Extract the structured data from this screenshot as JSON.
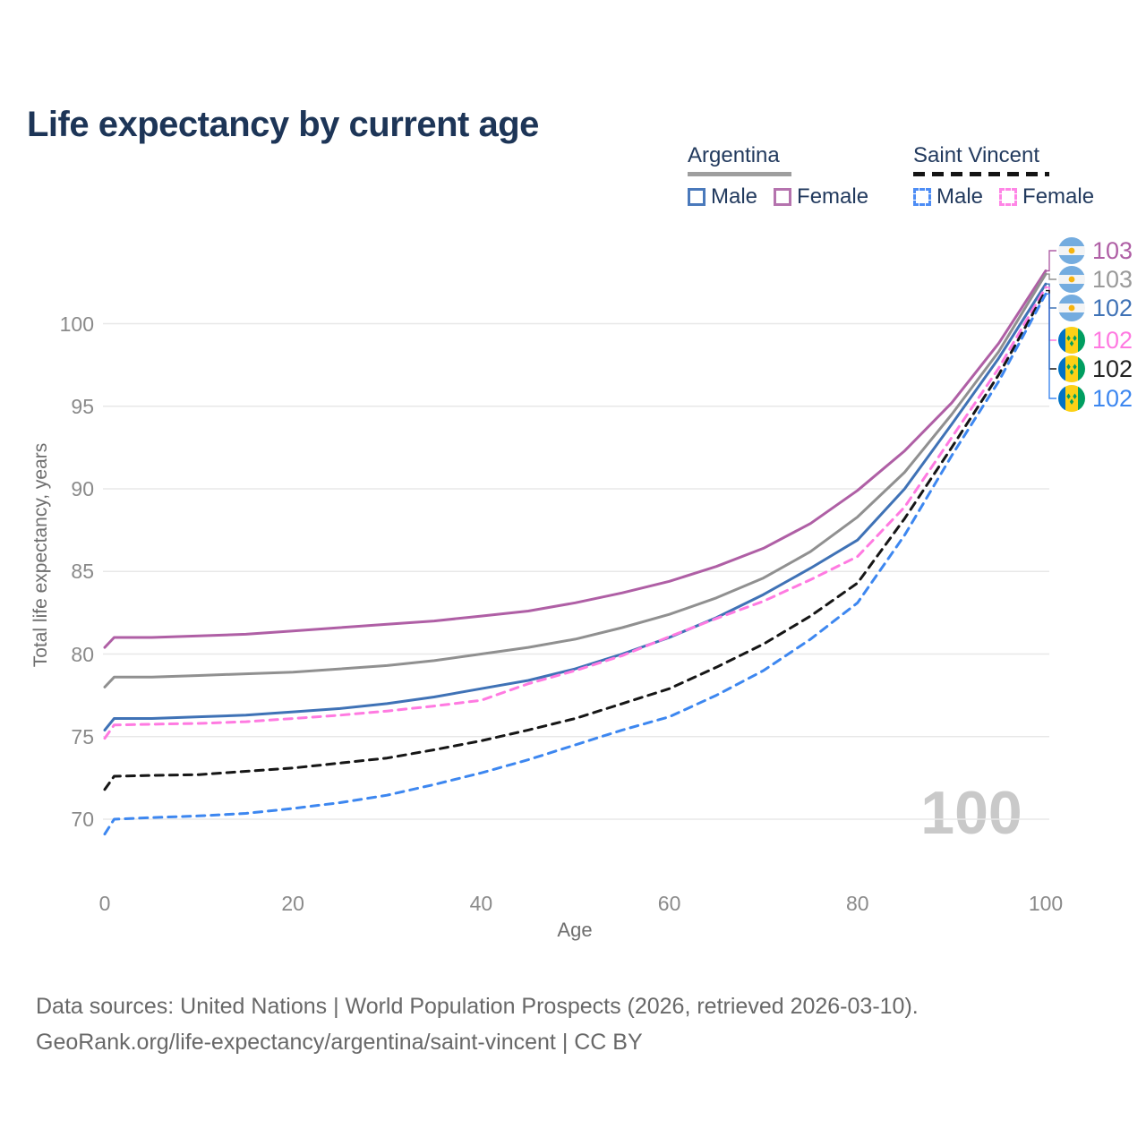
{
  "header": {
    "title": "Life expectancy by current age"
  },
  "legend": {
    "groups": [
      {
        "name": "Argentina",
        "line_style": "solid",
        "underline_color": "#9e9e9e",
        "items": [
          {
            "label": "Male",
            "color": "#4a79bb",
            "dashed": false
          },
          {
            "label": "Female",
            "color": "#b573ae",
            "dashed": false
          }
        ]
      },
      {
        "name": "Saint Vincent",
        "line_style": "dashed",
        "underline_color": "#141414",
        "items": [
          {
            "label": "Male",
            "color": "#4d8df5",
            "dashed": true
          },
          {
            "label": "Female",
            "color": "#ff85e6",
            "dashed": true
          }
        ]
      }
    ]
  },
  "chart_data": {
    "type": "line",
    "title": "Life expectancy by current age",
    "xlabel": "Age",
    "ylabel": "Total life expectancy, years",
    "x_ticks": [
      0,
      20,
      40,
      60,
      80,
      100
    ],
    "y_ticks": [
      70,
      75,
      80,
      85,
      90,
      95,
      100
    ],
    "xlim": [
      0,
      100
    ],
    "ylim": [
      70,
      100
    ],
    "grid": "horizontal",
    "watermark": "100",
    "x": [
      0,
      1,
      5,
      10,
      15,
      20,
      25,
      30,
      35,
      40,
      45,
      50,
      55,
      60,
      65,
      70,
      75,
      80,
      85,
      90,
      95,
      100
    ],
    "series": [
      {
        "id": "argentina-female",
        "name": "Argentina Female",
        "color": "#af5fa5",
        "dashed": false,
        "end_label": "103",
        "end_label_color": "#af5fa5",
        "flag": "argentina",
        "values": [
          80.4,
          81.0,
          81.0,
          81.1,
          81.2,
          81.4,
          81.6,
          81.8,
          82.0,
          82.3,
          82.6,
          83.1,
          83.7,
          84.4,
          85.3,
          86.4,
          87.9,
          89.9,
          92.3,
          95.2,
          98.8,
          103.2
        ]
      },
      {
        "id": "argentina-both",
        "name": "Argentina (both sexes)",
        "color": "#909090",
        "dashed": false,
        "end_label": "103",
        "end_label_color": "#9a9a9a",
        "flag": "argentina",
        "values": [
          78.0,
          78.6,
          78.6,
          78.7,
          78.8,
          78.9,
          79.1,
          79.3,
          79.6,
          80.0,
          80.4,
          80.9,
          81.6,
          82.4,
          83.4,
          84.6,
          86.2,
          88.3,
          91.0,
          94.5,
          98.3,
          103.0
        ]
      },
      {
        "id": "argentina-male",
        "name": "Argentina Male",
        "color": "#3f72b6",
        "dashed": false,
        "end_label": "102",
        "end_label_color": "#3f72b6",
        "flag": "argentina",
        "values": [
          75.4,
          76.1,
          76.1,
          76.2,
          76.3,
          76.5,
          76.7,
          77.0,
          77.4,
          77.9,
          78.4,
          79.1,
          80.0,
          81.0,
          82.2,
          83.6,
          85.2,
          86.9,
          90.0,
          93.9,
          97.9,
          102.4
        ]
      },
      {
        "id": "saint-vincent-female",
        "name": "Saint Vincent Female",
        "color": "#ff7ae1",
        "dashed": true,
        "end_label": "102",
        "end_label_color": "#ff7ae1",
        "flag": "saint-vincent",
        "values": [
          74.9,
          75.7,
          75.75,
          75.8,
          75.9,
          76.1,
          76.3,
          76.55,
          76.85,
          77.2,
          78.2,
          79.0,
          79.9,
          81.05,
          82.15,
          83.2,
          84.5,
          85.9,
          88.9,
          93.1,
          97.3,
          102.2
        ]
      },
      {
        "id": "saint-vincent-both",
        "name": "Saint Vincent (both sexes)",
        "color": "#161616",
        "dashed": true,
        "end_label": "102",
        "end_label_color": "#222222",
        "flag": "saint-vincent",
        "values": [
          71.8,
          72.6,
          72.65,
          72.7,
          72.9,
          73.1,
          73.4,
          73.7,
          74.2,
          74.75,
          75.4,
          76.1,
          77.0,
          77.9,
          79.2,
          80.6,
          82.3,
          84.3,
          88.2,
          92.5,
          96.9,
          102.0
        ]
      },
      {
        "id": "saint-vincent-male",
        "name": "Saint Vincent Male",
        "color": "#3d87f0",
        "dashed": true,
        "end_label": "102",
        "end_label_color": "#3d87f0",
        "flag": "saint-vincent",
        "values": [
          69.1,
          70.0,
          70.1,
          70.2,
          70.35,
          70.65,
          71.0,
          71.45,
          72.1,
          72.8,
          73.6,
          74.5,
          75.4,
          76.2,
          77.5,
          79.0,
          80.9,
          83.1,
          87.2,
          92.0,
          96.5,
          101.8
        ]
      }
    ]
  },
  "footer": {
    "line1": "Data sources: United Nations | World Population Prospects (2026, retrieved 2026-03-10).",
    "line2": "GeoRank.org/life-expectancy/argentina/saint-vincent | CC BY"
  }
}
